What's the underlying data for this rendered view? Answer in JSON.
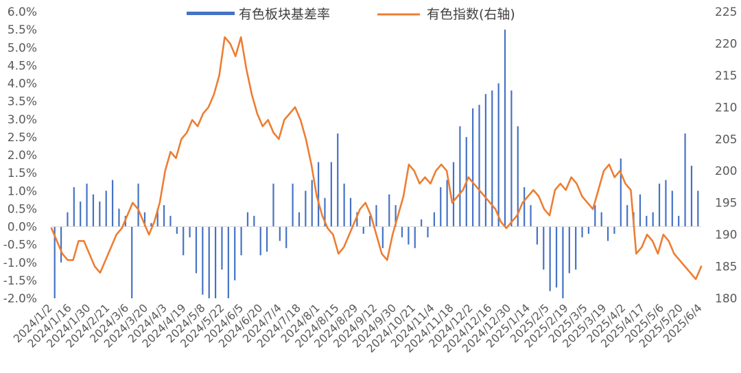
{
  "chart_data": {
    "type": "bar+line",
    "title": "",
    "legend": [
      "有色板块基差率",
      "有色指数(右轴)"
    ],
    "legend_position": "top-center",
    "grid": false,
    "colors": {
      "bars": "#4472C4",
      "line": "#ED7D31"
    },
    "left_axis": {
      "ylim": [
        -0.02,
        0.06
      ],
      "tick_labels": [
        "6.0%",
        "5.5%",
        "5.0%",
        "4.5%",
        "4.0%",
        "3.5%",
        "3.0%",
        "2.5%",
        "2.0%",
        "1.5%",
        "1.0%",
        "0.5%",
        "0.0%",
        "-0.5%",
        "-1.0%",
        "-1.5%",
        "-2.0%"
      ]
    },
    "right_axis": {
      "ylim": [
        180,
        225
      ],
      "tick_labels": [
        "225",
        "220",
        "215",
        "210",
        "205",
        "200",
        "195",
        "190",
        "185",
        "180"
      ]
    },
    "x_tick_labels": [
      "2024/1/2",
      "2024/1/16",
      "2024/1/30",
      "2024/2/21",
      "2024/3/6",
      "2024/3/20",
      "2024/4/3",
      "2024/4/19",
      "2024/5/8",
      "2024/5/22",
      "2024/6/5",
      "2024/6/20",
      "2024/7/4",
      "2024/7/18",
      "2024/8/1",
      "2024/8/15",
      "2024/8/29",
      "2024/9/12",
      "2024/9/30",
      "2024/10/21",
      "2024/11/4",
      "2024/11/18",
      "2024/12/2",
      "2024/12/16",
      "2024/12/30",
      "2025/1/14",
      "2025/2/5",
      "2025/2/19",
      "2025/3/5",
      "2025/3/19",
      "2025/4/2",
      "2025/4/17",
      "2025/5/6",
      "2025/5/20",
      "2025/6/4"
    ],
    "series": [
      {
        "name": "有色板块基差率",
        "type": "bar",
        "axis": "left",
        "values": [
          -0.02,
          -0.01,
          0.004,
          0.011,
          0.007,
          0.012,
          0.009,
          0.007,
          0.01,
          0.013,
          0.005,
          0.003,
          -0.02,
          0.012,
          0.004,
          0.001,
          0.005,
          0.006,
          0.003,
          -0.002,
          -0.008,
          -0.003,
          -0.013,
          -0.019,
          -0.02,
          -0.02,
          -0.012,
          -0.02,
          -0.015,
          -0.008,
          0.004,
          0.003,
          -0.008,
          -0.007,
          0.012,
          -0.004,
          -0.006,
          0.012,
          0.004,
          0.01,
          0.013,
          0.018,
          0.008,
          0.018,
          0.026,
          0.012,
          0.008,
          0.004,
          -0.002,
          0.003,
          0.006,
          -0.006,
          0.009,
          0.006,
          -0.003,
          -0.005,
          -0.006,
          0.002,
          -0.003,
          0.004,
          0.011,
          0.013,
          0.018,
          0.028,
          0.025,
          0.033,
          0.034,
          0.037,
          0.038,
          0.04,
          0.055,
          0.038,
          0.028,
          0.011,
          0.006,
          -0.005,
          -0.012,
          -0.018,
          -0.017,
          -0.02,
          -0.013,
          -0.012,
          -0.003,
          -0.002,
          0.006,
          0.004,
          -0.004,
          -0.002,
          0.019,
          0.006,
          0.004,
          0.009,
          0.003,
          0.004,
          0.012,
          0.013,
          0.01,
          0.003,
          0.026,
          0.017,
          0.01
        ],
        "note": "approximate sampled envelope values read from the bars"
      },
      {
        "name": "有色指数(右轴)",
        "type": "line",
        "axis": "right",
        "values": [
          191,
          189,
          187,
          186,
          186,
          189,
          189,
          187,
          185,
          184,
          186,
          188,
          190,
          191,
          193,
          195,
          194,
          192,
          190,
          192,
          195,
          200,
          203,
          202,
          205,
          206,
          208,
          207,
          209,
          210,
          212,
          215,
          221,
          220,
          218,
          221,
          216,
          212,
          209,
          207,
          208,
          206,
          205,
          208,
          209,
          210,
          208,
          205,
          201,
          196,
          193,
          191,
          190,
          187,
          188,
          190,
          192,
          194,
          195,
          193,
          190,
          187,
          186,
          190,
          193,
          196,
          201,
          200,
          198,
          199,
          198,
          200,
          201,
          200,
          195,
          196,
          197,
          199,
          198,
          197,
          196,
          195,
          194,
          192,
          191,
          192,
          193,
          195,
          196,
          197,
          196,
          194,
          193,
          197,
          198,
          197,
          199,
          198,
          196,
          195,
          194,
          197,
          200,
          201,
          199,
          200,
          198,
          197,
          187,
          188,
          190,
          189,
          187,
          190,
          189,
          187,
          186,
          185,
          184,
          183,
          185
        ]
      }
    ]
  }
}
